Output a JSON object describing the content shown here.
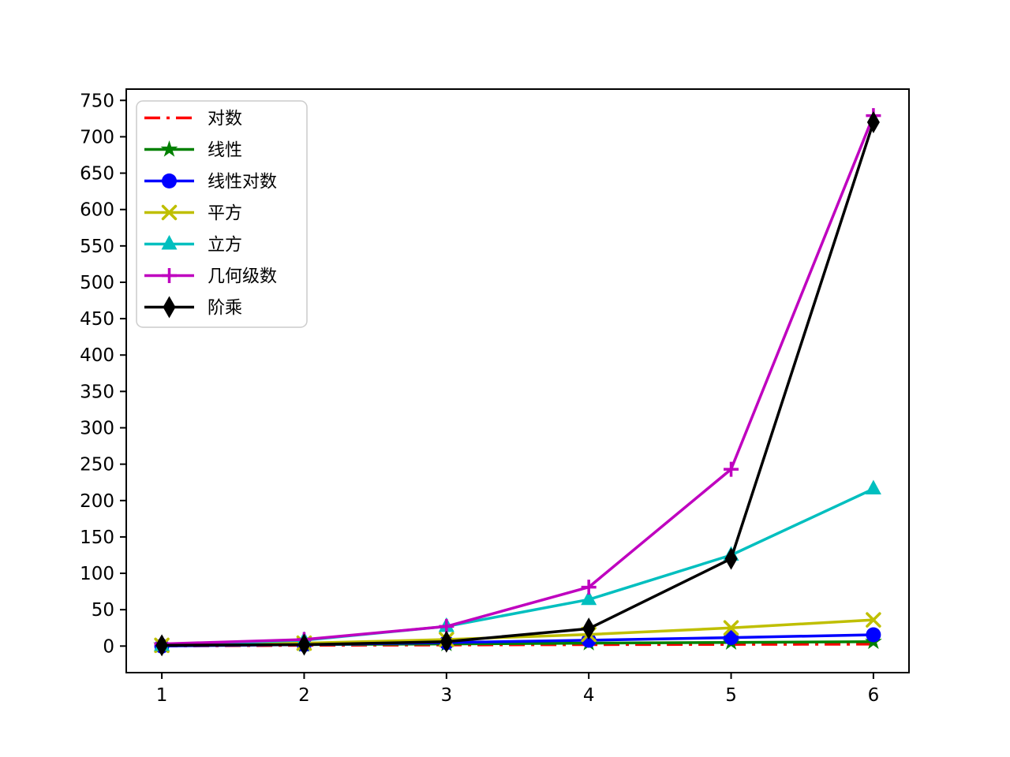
{
  "chart_data": {
    "type": "line",
    "title": "",
    "xlabel": "",
    "ylabel": "",
    "grid": false,
    "legend_position": "upper-left",
    "background_color": "#ffffff",
    "x": [
      1,
      2,
      3,
      4,
      5,
      6
    ],
    "xticks": [
      "1",
      "2",
      "3",
      "4",
      "5",
      "6"
    ],
    "yticks": [
      "0",
      "50",
      "100",
      "150",
      "200",
      "250",
      "300",
      "350",
      "400",
      "450",
      "500",
      "550",
      "600",
      "650",
      "700",
      "750"
    ],
    "ytick_values": [
      0,
      50,
      100,
      150,
      200,
      250,
      300,
      350,
      400,
      450,
      500,
      550,
      600,
      650,
      700,
      750
    ],
    "xlim": [
      0.75,
      6.25
    ],
    "ylim": [
      -36.5,
      765.5
    ],
    "series": [
      {
        "name": "对数",
        "color": "#ff0000",
        "linestyle": "dashdot",
        "marker": "none",
        "values": [
          0,
          1,
          1.585,
          2,
          2.322,
          2.585
        ]
      },
      {
        "name": "线性",
        "color": "#008000",
        "linestyle": "solid",
        "marker": "star",
        "values": [
          1,
          2,
          3,
          4,
          5,
          6
        ]
      },
      {
        "name": "线性对数",
        "color": "#0000ff",
        "linestyle": "solid",
        "marker": "circle",
        "values": [
          0,
          2,
          4.755,
          8,
          11.61,
          15.51
        ]
      },
      {
        "name": "平方",
        "color": "#bfbf00",
        "linestyle": "solid",
        "marker": "x",
        "values": [
          1,
          4,
          9,
          16,
          25,
          36
        ]
      },
      {
        "name": "立方",
        "color": "#00bfbf",
        "linestyle": "solid",
        "marker": "triangle",
        "values": [
          1,
          8,
          27,
          64,
          125,
          216
        ]
      },
      {
        "name": "几何级数",
        "color": "#bf00bf",
        "linestyle": "solid",
        "marker": "plus",
        "values": [
          3,
          9,
          27,
          81,
          243,
          729
        ]
      },
      {
        "name": "阶乘",
        "color": "#000000",
        "linestyle": "solid",
        "marker": "diamond",
        "values": [
          1,
          2,
          6,
          24,
          120,
          720
        ]
      }
    ]
  }
}
